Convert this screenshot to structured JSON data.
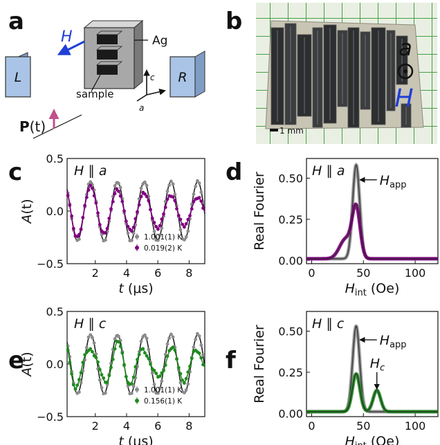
{
  "panel_labels": {
    "a": "a",
    "b": "b",
    "c": "c",
    "d": "d",
    "e": "e",
    "f": "f"
  },
  "schematic": {
    "field_label": "H",
    "silver_label": "Ag",
    "sample_label": "sample",
    "left_detector": "L",
    "right_detector": "R",
    "axis_c": "c",
    "axis_a": "a",
    "polarization_label": "P",
    "polarization_arg": "(t)"
  },
  "photo": {
    "axis_label": "a",
    "field_label": "H",
    "scale_bar": "1 mm"
  },
  "colors": {
    "gray": "#8c8c8c",
    "black": "#222222",
    "purple": "#800080",
    "green": "#1f8a1f",
    "field_arrow": "#1f3fd6",
    "polarization_arrow": "#c0508a",
    "detector": "#a9c4e6"
  },
  "chart_data": [
    {
      "panel": "c",
      "type": "line",
      "annotation": "H ∥ a",
      "annotation_main": "H",
      "annotation_sep": " ∥ ",
      "annotation_axis": "a",
      "xlabel": "t (μs)",
      "xlabel_main": "t",
      "xlabel_unit": "(μs)",
      "ylabel": "A(t)",
      "ylabel_main": "A",
      "ylabel_arg": "(t)",
      "xlim": [
        0.2,
        9.0
      ],
      "ylim": [
        -0.5,
        0.5
      ],
      "xticks": [
        "2",
        "4",
        "6",
        "8"
      ],
      "yticks": [
        "−0.5",
        "0.0",
        "0.5"
      ],
      "legend_position": "bottom-right",
      "series": [
        {
          "name": "1.001(1) K",
          "color": "gray",
          "amplitude": 0.28,
          "frequency_MHz": 0.585,
          "phase_deg": 0,
          "relaxation_per_us": 0.0
        },
        {
          "name": "0.019(2) K",
          "color": "purple",
          "amplitude": 0.27,
          "frequency_MHz": 0.585,
          "phase_deg": 0,
          "relaxation_per_us": 0.085
        }
      ]
    },
    {
      "panel": "d",
      "type": "line",
      "annotation": "H ∥ a",
      "annotation_main": "H",
      "annotation_sep": " ∥ ",
      "annotation_axis": "a",
      "peak_label": "Happ",
      "peak_label_main": "H",
      "peak_label_sub": "app",
      "xlabel": "Hint (Oe)",
      "xlabel_main": "H",
      "xlabel_sub": "int",
      "xlabel_unit": " (Oe)",
      "ylabel": "Real Fourier",
      "xlim": [
        -5,
        122
      ],
      "ylim": [
        -0.02,
        0.62
      ],
      "xticks": [
        "0",
        "50",
        "100"
      ],
      "yticks": [
        "0.00",
        "0.25",
        "0.50"
      ],
      "series": [
        {
          "color": "gray",
          "baseline": 0.01,
          "peaks": [
            {
              "center": 43,
              "height": 0.57,
              "width": 3.4
            }
          ]
        },
        {
          "color": "purple",
          "baseline": 0.01,
          "peaks": [
            {
              "center": 43,
              "height": 0.3,
              "width": 3.8
            },
            {
              "center": 33,
              "height": 0.12,
              "width": 6.0
            }
          ]
        }
      ]
    },
    {
      "panel": "e",
      "type": "line",
      "annotation": "H ∥ c",
      "annotation_main": "H",
      "annotation_sep": " ∥ ",
      "annotation_axis": "c",
      "xlabel": "t (μs)",
      "xlabel_main": "t",
      "xlabel_unit": "(μs)",
      "ylabel": "A(t)",
      "ylabel_main": "A",
      "ylabel_arg": "(t)",
      "xlim": [
        0.2,
        9.0
      ],
      "ylim": [
        -0.5,
        0.5
      ],
      "xticks": [
        "2",
        "4",
        "6",
        "8"
      ],
      "yticks": [
        "−0.5",
        "0.0",
        "0.5"
      ],
      "legend_position": "bottom-right",
      "series": [
        {
          "name": "1.001(1) K",
          "color": "gray",
          "amplitude": 0.28,
          "frequency_MHz": 0.585,
          "phase_deg": 0,
          "relaxation_per_us": 0.0
        },
        {
          "name": "0.156(1) K",
          "color": "green",
          "amplitude": 0.21,
          "frequency_MHz": 0.585,
          "phase_deg": 0,
          "relaxation_per_us": 0.06,
          "beat_amplitude": 0.07,
          "beat_frequency_MHz": 0.85
        }
      ]
    },
    {
      "panel": "f",
      "type": "line",
      "annotation": "H ∥ c",
      "annotation_main": "H",
      "annotation_sep": " ∥ ",
      "annotation_axis": "c",
      "peak_label": "Happ",
      "peak_label_main": "H",
      "peak_label_sub": "app",
      "second_peak_label": "Hc",
      "second_peak_label_main": "H",
      "second_peak_label_sub": "c",
      "xlabel": "Hint (Oe)",
      "xlabel_main": "H",
      "xlabel_sub": "int",
      "xlabel_unit": " (Oe)",
      "ylabel": "Real Fourier",
      "xlim": [
        -5,
        122
      ],
      "ylim": [
        -0.02,
        0.62
      ],
      "xticks": [
        "0",
        "50",
        "100"
      ],
      "yticks": [
        "0.00",
        "0.25",
        "0.50"
      ],
      "series": [
        {
          "color": "gray",
          "baseline": 0.01,
          "peaks": [
            {
              "center": 43,
              "height": 0.52,
              "width": 3.4
            }
          ]
        },
        {
          "color": "green",
          "baseline": 0.01,
          "peaks": [
            {
              "center": 43,
              "height": 0.23,
              "width": 3.6
            },
            {
              "center": 63,
              "height": 0.13,
              "width": 3.6
            }
          ]
        }
      ]
    }
  ]
}
